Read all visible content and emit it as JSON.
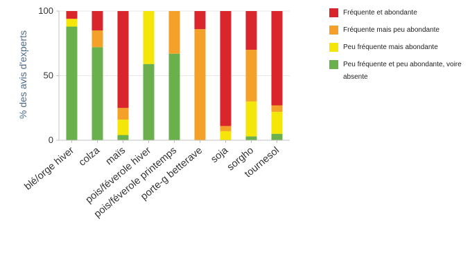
{
  "chart_data": {
    "type": "bar",
    "stacked": true,
    "ylabel": "% des avis d'experts",
    "ylim": [
      0,
      100
    ],
    "yticks": [
      0,
      50,
      100
    ],
    "categories": [
      "blé/orge hiver",
      "colza",
      "maïs",
      "pois/féverole hiver",
      "pois/féverole printemps",
      "porte-g betterave",
      "soja",
      "sorgho",
      "tournesol"
    ],
    "series": [
      {
        "name": "Peu fréquente et peu abondante, voire absente",
        "color": "#6ab04c",
        "values": [
          88,
          72,
          4,
          59,
          67,
          0,
          0,
          3,
          5
        ]
      },
      {
        "name": "Peu fréquente mais abondante",
        "color": "#f5e60a",
        "values": [
          6,
          0,
          12,
          41,
          0,
          0,
          7,
          27,
          17
        ]
      },
      {
        "name": "Fréquente mais peu abondante",
        "color": "#f4a12a",
        "values": [
          0,
          13,
          9,
          0,
          33,
          86,
          4,
          40,
          5
        ]
      },
      {
        "name": "Fréquente et abondante",
        "color": "#d8262c",
        "values": [
          6,
          15,
          75,
          0,
          0,
          14,
          89,
          30,
          73
        ]
      }
    ],
    "legend": {
      "position": "right",
      "entries": [
        {
          "label": "Fréquente et abondante",
          "color": "#d8262c"
        },
        {
          "label": "Fréquente mais peu abondante",
          "color": "#f4a12a"
        },
        {
          "label": "Peu fréquente mais abondante",
          "color": "#f5e60a"
        },
        {
          "label": "Peu fréquente et peu abondante, voire absente",
          "color": "#6ab04c"
        }
      ]
    }
  }
}
